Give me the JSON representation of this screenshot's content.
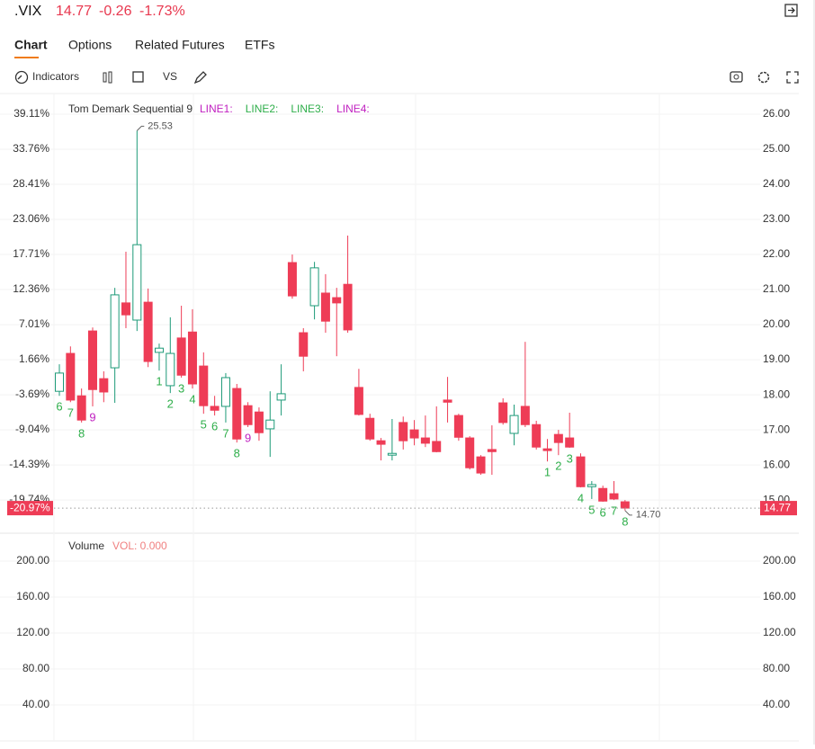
{
  "header": {
    "symbol": ".VIX",
    "price": 14.77,
    "change": -0.26,
    "change_pct": {
      "value": -1.73,
      "label": "-1.73%"
    }
  },
  "tabs": [
    "Chart",
    "Options",
    "Related Futures",
    "ETFs"
  ],
  "active_tab": 0,
  "toolbar": {
    "indicators": "Indicators",
    "vs": "VS"
  },
  "chart_data": {
    "type": "candlestick",
    "indicator": {
      "name": "Tom Demark Sequential 9",
      "lines": [
        "LINE1:",
        "LINE2:",
        "LINE3:",
        "LINE4:"
      ],
      "line_colors": [
        "#c020c0",
        "#2eae4a",
        "#2eae4a",
        "#c020c0"
      ]
    },
    "up_color": "#1d9a78",
    "down_color": "#ee3c56",
    "td_color": "#2eae4a",
    "td_nine_color": "#c020c0",
    "candles": {
      "open": [
        18.1,
        19.18,
        17.97,
        19.82,
        18.46,
        18.77,
        20.62,
        20.13,
        20.64,
        19.21,
        18.26,
        19.62,
        19.79,
        18.82,
        17.67,
        17.67,
        18.18,
        17.69,
        17.51,
        17.03,
        17.85,
        21.77,
        19.77,
        20.54,
        20.9,
        20.77,
        21.15,
        18.21,
        17.33,
        16.69,
        16.28,
        17.21,
        17.0,
        16.77,
        16.67,
        17.85,
        17.41,
        16.77,
        16.23,
        16.44,
        17.77,
        16.9,
        17.67,
        17.15,
        16.46,
        16.87,
        16.77,
        16.23,
        15.38,
        15.33,
        15.18,
        14.95
      ],
      "high": [
        18.87,
        19.38,
        18.18,
        19.92,
        18.67,
        21.05,
        22.08,
        25.53,
        21.03,
        19.46,
        20.21,
        20.54,
        20.44,
        19.21,
        17.97,
        18.62,
        18.31,
        17.79,
        17.64,
        18.1,
        18.87,
        22.0,
        19.9,
        21.79,
        21.44,
        21.05,
        22.54,
        18.74,
        17.46,
        16.77,
        17.31,
        17.38,
        17.28,
        17.41,
        17.67,
        18.51,
        17.46,
        16.82,
        16.28,
        17.13,
        17.9,
        17.72,
        19.51,
        17.26,
        16.74,
        17.0,
        17.49,
        16.33,
        15.54,
        15.41,
        15.54,
        15.0
      ],
      "low": [
        17.97,
        17.79,
        17.21,
        17.67,
        17.79,
        17.77,
        19.9,
        19.82,
        18.79,
        18.69,
        18.05,
        18.49,
        18.18,
        17.46,
        17.41,
        17.21,
        16.64,
        17.08,
        16.69,
        16.23,
        17.41,
        20.74,
        18.67,
        20.15,
        19.77,
        19.1,
        19.77,
        17.41,
        16.69,
        16.13,
        16.13,
        16.44,
        16.56,
        16.51,
        16.36,
        17.21,
        16.69,
        15.87,
        15.72,
        15.72,
        17.15,
        16.56,
        17.08,
        16.44,
        16.1,
        16.28,
        16.49,
        15.36,
        15.03,
        14.95,
        15.0,
        14.7
      ],
      "close": [
        18.62,
        17.85,
        17.28,
        18.15,
        18.08,
        20.85,
        20.28,
        22.28,
        18.95,
        19.33,
        19.18,
        18.56,
        18.31,
        17.69,
        17.56,
        18.49,
        16.74,
        17.15,
        16.92,
        17.28,
        18.03,
        20.82,
        19.1,
        21.62,
        20.1,
        20.62,
        19.85,
        17.44,
        16.74,
        16.59,
        16.33,
        16.69,
        16.77,
        16.62,
        16.38,
        17.79,
        16.79,
        15.92,
        15.77,
        16.38,
        17.21,
        17.41,
        17.15,
        16.51,
        16.41,
        16.64,
        16.51,
        15.38,
        15.44,
        14.97,
        15.03,
        14.77
      ]
    },
    "td_counts": [
      6,
      7,
      8,
      9,
      null,
      null,
      null,
      null,
      null,
      1,
      2,
      3,
      4,
      5,
      6,
      7,
      8,
      9,
      null,
      null,
      null,
      null,
      null,
      null,
      null,
      null,
      null,
      null,
      null,
      null,
      null,
      null,
      null,
      null,
      null,
      null,
      null,
      null,
      null,
      null,
      null,
      null,
      null,
      null,
      1,
      2,
      3,
      4,
      5,
      6,
      7,
      8
    ],
    "high_label": "25.53",
    "low_label": "14.70",
    "last": 14.77,
    "last_pct": {
      "value": -20.97,
      "label": "-20.97%"
    },
    "ylim": [
      14.08,
      26.59
    ],
    "yticks": [
      {
        "value": 26,
        "label": "26.00"
      },
      {
        "value": 25,
        "label": "25.00"
      },
      {
        "value": 24,
        "label": "24.00"
      },
      {
        "value": 23,
        "label": "23.00"
      },
      {
        "value": 22,
        "label": "22.00"
      },
      {
        "value": 21,
        "label": "21.00"
      },
      {
        "value": 20,
        "label": "20.00"
      },
      {
        "value": 19,
        "label": "19.00"
      },
      {
        "value": 18,
        "label": "18.00"
      },
      {
        "value": 17,
        "label": "17.00"
      },
      {
        "value": 16,
        "label": "16.00"
      },
      {
        "value": 15,
        "label": "15.00"
      }
    ],
    "y2lim": [
      -24.68,
      42.27
    ],
    "y2ticks": [
      {
        "value": 39.11,
        "label": "39.11%"
      },
      {
        "value": 33.76,
        "label": "33.76%"
      },
      {
        "value": 28.41,
        "label": "28.41%"
      },
      {
        "value": 23.06,
        "label": "23.06%"
      },
      {
        "value": 17.71,
        "label": "17.71%"
      },
      {
        "value": 12.36,
        "label": "12.36%"
      },
      {
        "value": 7.01,
        "label": "7.01%"
      },
      {
        "value": 1.66,
        "label": "1.66%"
      },
      {
        "value": -3.69,
        "label": "-3.69%"
      },
      {
        "value": -9.04,
        "label": "-9.04%"
      },
      {
        "value": -14.39,
        "label": "-14.39%"
      },
      {
        "value": -19.74,
        "label": "-19.74%"
      }
    ],
    "volume": {
      "title": "Volume",
      "label": "VOL: 0.000",
      "ylim": [
        0,
        230
      ],
      "yticks": [
        {
          "value": 200,
          "label": "200.00"
        },
        {
          "value": 160,
          "label": "160.00"
        },
        {
          "value": 120,
          "label": "120.00"
        },
        {
          "value": 80,
          "label": "80.00"
        },
        {
          "value": 40,
          "label": "40.00"
        }
      ]
    }
  }
}
